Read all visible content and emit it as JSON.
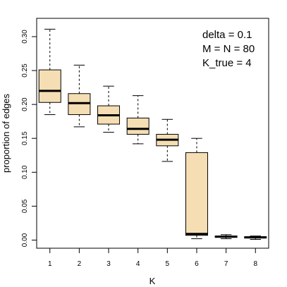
{
  "chart_data": {
    "type": "boxplot",
    "xlabel": "K",
    "ylabel": "proportion of edges",
    "ylim": [
      -0.012,
      0.327
    ],
    "x_ticks": [
      "1",
      "2",
      "3",
      "4",
      "5",
      "6",
      "7",
      "8"
    ],
    "y_ticks": [
      "0.00",
      "0.05",
      "0.10",
      "0.15",
      "0.20",
      "0.25",
      "0.30"
    ],
    "y_tick_values": [
      0.0,
      0.05,
      0.1,
      0.15,
      0.2,
      0.25,
      0.3
    ],
    "annotations": [
      "delta = 0.1",
      "M = N = 80",
      "K_true = 4"
    ],
    "box_fill": "#f5deb3",
    "grid": false,
    "boxes": [
      {
        "category": "1",
        "min": 0.185,
        "q1": 0.203,
        "median": 0.22,
        "q3": 0.251,
        "max": 0.311
      },
      {
        "category": "2",
        "min": 0.167,
        "q1": 0.185,
        "median": 0.202,
        "q3": 0.216,
        "max": 0.258
      },
      {
        "category": "3",
        "min": 0.159,
        "q1": 0.171,
        "median": 0.184,
        "q3": 0.198,
        "max": 0.227
      },
      {
        "category": "4",
        "min": 0.142,
        "q1": 0.156,
        "median": 0.164,
        "q3": 0.18,
        "max": 0.213
      },
      {
        "category": "5",
        "min": 0.116,
        "q1": 0.139,
        "median": 0.148,
        "q3": 0.156,
        "max": 0.178
      },
      {
        "category": "6",
        "min": 0.002,
        "q1": 0.007,
        "median": 0.009,
        "q3": 0.129,
        "max": 0.15
      },
      {
        "category": "7",
        "min": 0.002,
        "q1": 0.004,
        "median": 0.005,
        "q3": 0.006,
        "max": 0.008
      },
      {
        "category": "8",
        "min": 0.001,
        "q1": 0.003,
        "median": 0.004,
        "q3": 0.005,
        "max": 0.006
      }
    ]
  }
}
